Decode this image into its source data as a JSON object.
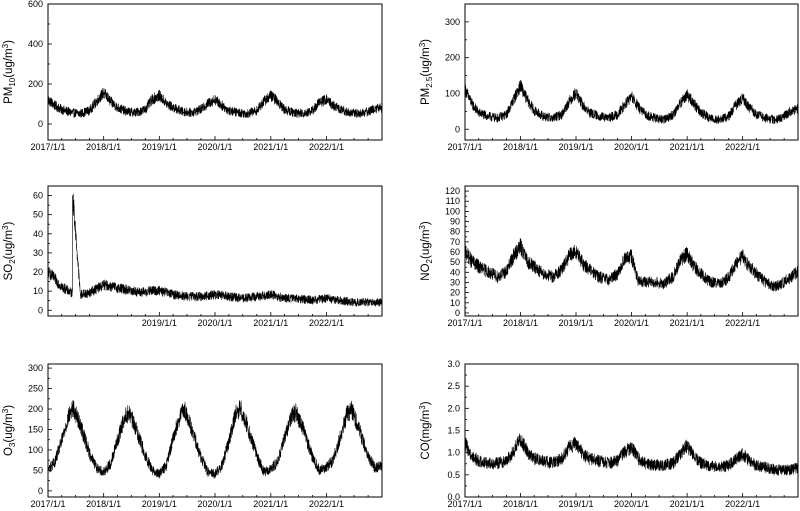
{
  "chart_data": [
    {
      "id": "pm10",
      "type": "line",
      "ylabel": {
        "base": "PM",
        "sub": "10",
        "unit_pre": "(ug/m",
        "unit_sup": "3",
        "unit_post": ")"
      },
      "ylim": [
        -80,
        600
      ],
      "yticks": [
        0,
        200,
        400,
        600
      ],
      "xticks": [
        "2017/1/1",
        "2018/1/1",
        "2019/1/1",
        "2020/1/1",
        "2021/1/1",
        "2022/1/1"
      ],
      "xlim": [
        "2017-01-01",
        "2022-12-31"
      ],
      "series": [
        {
          "x": [
            "2017-01-01",
            "2017-02-15",
            "2017-04-01",
            "2017-06-01",
            "2017-08-01",
            "2017-10-01",
            "2017-11-15",
            "2018-01-01",
            "2018-02-15",
            "2018-04-01",
            "2018-06-01",
            "2018-08-01",
            "2018-10-01",
            "2018-11-15",
            "2019-01-01",
            "2019-02-15",
            "2019-04-01",
            "2019-06-01",
            "2019-08-01",
            "2019-10-01",
            "2019-11-15",
            "2020-01-01",
            "2020-02-15",
            "2020-04-01",
            "2020-06-01",
            "2020-08-01",
            "2020-10-01",
            "2020-11-15",
            "2021-01-01",
            "2021-02-15",
            "2021-04-01",
            "2021-06-01",
            "2021-08-01",
            "2021-10-01",
            "2021-11-15",
            "2022-01-01",
            "2022-02-15",
            "2022-04-01",
            "2022-06-01",
            "2022-08-01",
            "2022-10-01",
            "2022-11-15",
            "2022-12-31"
          ],
          "y": [
            120,
            90,
            70,
            55,
            50,
            65,
            110,
            155,
            110,
            80,
            60,
            55,
            70,
            120,
            140,
            100,
            80,
            60,
            55,
            70,
            100,
            120,
            90,
            65,
            55,
            50,
            65,
            110,
            140,
            110,
            70,
            55,
            50,
            65,
            105,
            120,
            90,
            70,
            55,
            50,
            60,
            75,
            80
          ]
        }
      ]
    },
    {
      "id": "pm25",
      "type": "line",
      "ylabel": {
        "base": "PM",
        "sub": "2.5",
        "unit_pre": "(ug/m",
        "unit_sup": "3",
        "unit_post": ")"
      },
      "ylim": [
        -30,
        350
      ],
      "yticks": [
        0,
        100,
        200,
        300
      ],
      "xticks": [
        "2017/1/1",
        "2018/1/1",
        "2019/1/1",
        "2020/1/1",
        "2021/1/1",
        "2022/1/1"
      ],
      "xlim": [
        "2017-01-01",
        "2022-12-31"
      ],
      "series": [
        {
          "x": [
            "2017-01-01",
            "2017-02-15",
            "2017-04-01",
            "2017-06-01",
            "2017-08-01",
            "2017-10-01",
            "2017-11-15",
            "2018-01-01",
            "2018-02-15",
            "2018-04-01",
            "2018-06-01",
            "2018-08-01",
            "2018-10-01",
            "2018-11-15",
            "2019-01-01",
            "2019-02-15",
            "2019-04-01",
            "2019-06-01",
            "2019-08-01",
            "2019-10-01",
            "2019-11-15",
            "2020-01-01",
            "2020-02-15",
            "2020-04-01",
            "2020-06-01",
            "2020-08-01",
            "2020-10-01",
            "2020-11-15",
            "2021-01-01",
            "2021-02-15",
            "2021-04-01",
            "2021-06-01",
            "2021-08-01",
            "2021-10-01",
            "2021-11-15",
            "2022-01-01",
            "2022-02-15",
            "2022-04-01",
            "2022-06-01",
            "2022-08-01",
            "2022-10-01",
            "2022-11-15",
            "2022-12-31"
          ],
          "y": [
            110,
            70,
            45,
            35,
            30,
            40,
            80,
            120,
            80,
            50,
            35,
            30,
            40,
            75,
            100,
            65,
            45,
            35,
            30,
            40,
            65,
            90,
            60,
            40,
            30,
            25,
            40,
            70,
            95,
            70,
            45,
            30,
            25,
            35,
            65,
            85,
            60,
            40,
            30,
            25,
            35,
            50,
            55
          ]
        }
      ]
    },
    {
      "id": "so2",
      "type": "line",
      "ylabel": {
        "base": "SO",
        "sub": "2",
        "unit_pre": "(ug/m",
        "unit_sup": "3",
        "unit_post": ")"
      },
      "ylim": [
        -3,
        65
      ],
      "yticks": [
        0,
        10,
        20,
        30,
        40,
        50,
        60
      ],
      "xticks": [
        "2019/1/1",
        "2020/1/1",
        "2021/1/1",
        "2022/1/1"
      ],
      "xlim": [
        "2017-01-01",
        "2022-12-31"
      ],
      "series": [
        {
          "x": [
            "2017-01-01",
            "2017-02-15",
            "2017-04-01",
            "2017-06-01",
            "2017-06-10",
            "2017-06-12",
            "2017-08-01",
            "2017-10-01",
            "2017-11-15",
            "2018-01-01",
            "2018-03-01",
            "2018-05-01",
            "2018-07-01",
            "2018-09-01",
            "2018-11-15",
            "2019-01-01",
            "2019-04-01",
            "2019-07-01",
            "2019-10-01",
            "2020-01-01",
            "2020-04-01",
            "2020-07-01",
            "2020-10-01",
            "2021-01-01",
            "2021-04-01",
            "2021-07-01",
            "2021-10-01",
            "2022-01-01",
            "2022-04-01",
            "2022-07-01",
            "2022-10-01",
            "2022-12-31"
          ],
          "y": [
            20,
            16,
            12,
            9,
            9,
            60,
            8,
            9,
            11,
            13,
            12,
            11,
            10,
            9,
            10,
            10,
            8,
            7,
            7,
            8,
            7,
            6,
            7,
            8,
            6,
            6,
            5,
            6,
            5,
            4,
            4,
            4
          ]
        }
      ]
    },
    {
      "id": "no2",
      "type": "line",
      "ylabel": {
        "base": "NO",
        "sub": "2",
        "unit_pre": "(ug/m",
        "unit_sup": "3",
        "unit_post": ")"
      },
      "ylim": [
        -3,
        125
      ],
      "yticks": [
        0,
        10,
        20,
        30,
        40,
        50,
        60,
        70,
        80,
        90,
        100,
        110,
        120
      ],
      "xticks": [
        "2017/1/1",
        "2018/1/1",
        "2019/1/1",
        "2020/1/1",
        "2021/1/1",
        "2022/1/1"
      ],
      "xlim": [
        "2017-01-01",
        "2022-12-31"
      ],
      "series": [
        {
          "x": [
            "2017-01-01",
            "2017-02-15",
            "2017-04-01",
            "2017-06-01",
            "2017-08-01",
            "2017-10-01",
            "2017-11-15",
            "2018-01-01",
            "2018-02-15",
            "2018-04-01",
            "2018-06-01",
            "2018-08-01",
            "2018-10-01",
            "2018-11-15",
            "2019-01-01",
            "2019-02-15",
            "2019-04-01",
            "2019-06-01",
            "2019-08-01",
            "2019-10-01",
            "2019-11-15",
            "2020-01-01",
            "2020-02-15",
            "2020-04-01",
            "2020-06-01",
            "2020-08-01",
            "2020-10-01",
            "2020-11-15",
            "2021-01-01",
            "2021-02-15",
            "2021-04-01",
            "2021-06-01",
            "2021-08-01",
            "2021-10-01",
            "2021-11-15",
            "2022-01-01",
            "2022-02-15",
            "2022-04-01",
            "2022-06-01",
            "2022-08-01",
            "2022-10-01",
            "2022-11-15",
            "2022-12-31"
          ],
          "y": [
            60,
            50,
            45,
            40,
            35,
            40,
            55,
            65,
            50,
            45,
            38,
            35,
            42,
            55,
            60,
            48,
            42,
            35,
            32,
            38,
            52,
            55,
            30,
            30,
            30,
            28,
            35,
            50,
            58,
            45,
            38,
            30,
            28,
            34,
            48,
            55,
            45,
            38,
            30,
            25,
            30,
            35,
            40
          ]
        }
      ]
    },
    {
      "id": "o3",
      "type": "line",
      "ylabel": {
        "base": "O",
        "sub": "3",
        "unit_pre": "(ug/m",
        "unit_sup": "3",
        "unit_post": ")"
      },
      "ylim": [
        -15,
        310
      ],
      "yticks": [
        0,
        50,
        100,
        150,
        200,
        250,
        300
      ],
      "xticks": [
        "2017/1/1",
        "2018/1/1",
        "2019/1/1",
        "2020/1/1",
        "2021/1/1",
        "2022/1/1"
      ],
      "xlim": [
        "2017-01-01",
        "2022-12-31"
      ],
      "series": [
        {
          "x": [
            "2017-01-01",
            "2017-02-15",
            "2017-04-01",
            "2017-05-15",
            "2017-06-15",
            "2017-08-01",
            "2017-10-01",
            "2017-11-15",
            "2018-01-01",
            "2018-02-15",
            "2018-04-01",
            "2018-05-15",
            "2018-06-15",
            "2018-08-01",
            "2018-10-01",
            "2018-11-15",
            "2019-01-01",
            "2019-02-15",
            "2019-04-01",
            "2019-05-15",
            "2019-06-15",
            "2019-08-01",
            "2019-10-01",
            "2019-11-15",
            "2020-01-01",
            "2020-02-15",
            "2020-04-01",
            "2020-05-15",
            "2020-06-15",
            "2020-08-01",
            "2020-10-01",
            "2020-11-15",
            "2021-01-01",
            "2021-02-15",
            "2021-04-01",
            "2021-05-15",
            "2021-06-15",
            "2021-08-01",
            "2021-10-01",
            "2021-11-15",
            "2022-01-01",
            "2022-02-15",
            "2022-04-01",
            "2022-05-15",
            "2022-06-15",
            "2022-08-01",
            "2022-10-01",
            "2022-11-15",
            "2022-12-31"
          ],
          "y": [
            50,
            70,
            120,
            180,
            200,
            160,
            90,
            55,
            45,
            65,
            120,
            175,
            190,
            150,
            85,
            50,
            40,
            60,
            125,
            180,
            195,
            150,
            80,
            45,
            40,
            60,
            120,
            185,
            200,
            155,
            85,
            45,
            50,
            70,
            125,
            180,
            190,
            150,
            80,
            50,
            55,
            75,
            130,
            185,
            195,
            150,
            85,
            55,
            60
          ]
        }
      ]
    },
    {
      "id": "co",
      "type": "line",
      "ylabel": {
        "base": "CO",
        "sub": "",
        "unit_pre": "(mg/m",
        "unit_sup": "3",
        "unit_post": ")"
      },
      "ylim": [
        0,
        3.0
      ],
      "yticks": [
        0.0,
        0.5,
        1.0,
        1.5,
        2.0,
        2.5,
        3.0
      ],
      "xticks": [
        "2017/1/1",
        "2018/1/1",
        "2019/1/1",
        "2020/1/1",
        "2021/1/1",
        "2022/1/1"
      ],
      "xlim": [
        "2017-01-01",
        "2022-12-31"
      ],
      "series": [
        {
          "x": [
            "2017-01-01",
            "2017-02-15",
            "2017-04-01",
            "2017-06-01",
            "2017-08-01",
            "2017-10-01",
            "2017-11-15",
            "2018-01-01",
            "2018-02-15",
            "2018-04-01",
            "2018-06-01",
            "2018-08-01",
            "2018-10-01",
            "2018-11-15",
            "2019-01-01",
            "2019-02-15",
            "2019-04-01",
            "2019-06-01",
            "2019-08-01",
            "2019-10-01",
            "2019-11-15",
            "2020-01-01",
            "2020-02-15",
            "2020-04-01",
            "2020-06-01",
            "2020-08-01",
            "2020-10-01",
            "2020-11-15",
            "2021-01-01",
            "2021-02-15",
            "2021-04-01",
            "2021-06-01",
            "2021-08-01",
            "2021-10-01",
            "2021-11-15",
            "2022-01-01",
            "2022-02-15",
            "2022-04-01",
            "2022-06-01",
            "2022-08-01",
            "2022-10-01",
            "2022-11-15",
            "2022-12-31"
          ],
          "y": [
            1.2,
            0.9,
            0.8,
            0.75,
            0.75,
            0.8,
            1.0,
            1.3,
            1.0,
            0.85,
            0.8,
            0.75,
            0.85,
            1.1,
            1.2,
            0.95,
            0.85,
            0.8,
            0.75,
            0.8,
            1.0,
            1.1,
            0.85,
            0.75,
            0.7,
            0.7,
            0.75,
            0.95,
            1.15,
            0.9,
            0.75,
            0.7,
            0.65,
            0.7,
            0.85,
            0.95,
            0.8,
            0.7,
            0.65,
            0.6,
            0.6,
            0.6,
            0.65
          ]
        }
      ]
    }
  ]
}
